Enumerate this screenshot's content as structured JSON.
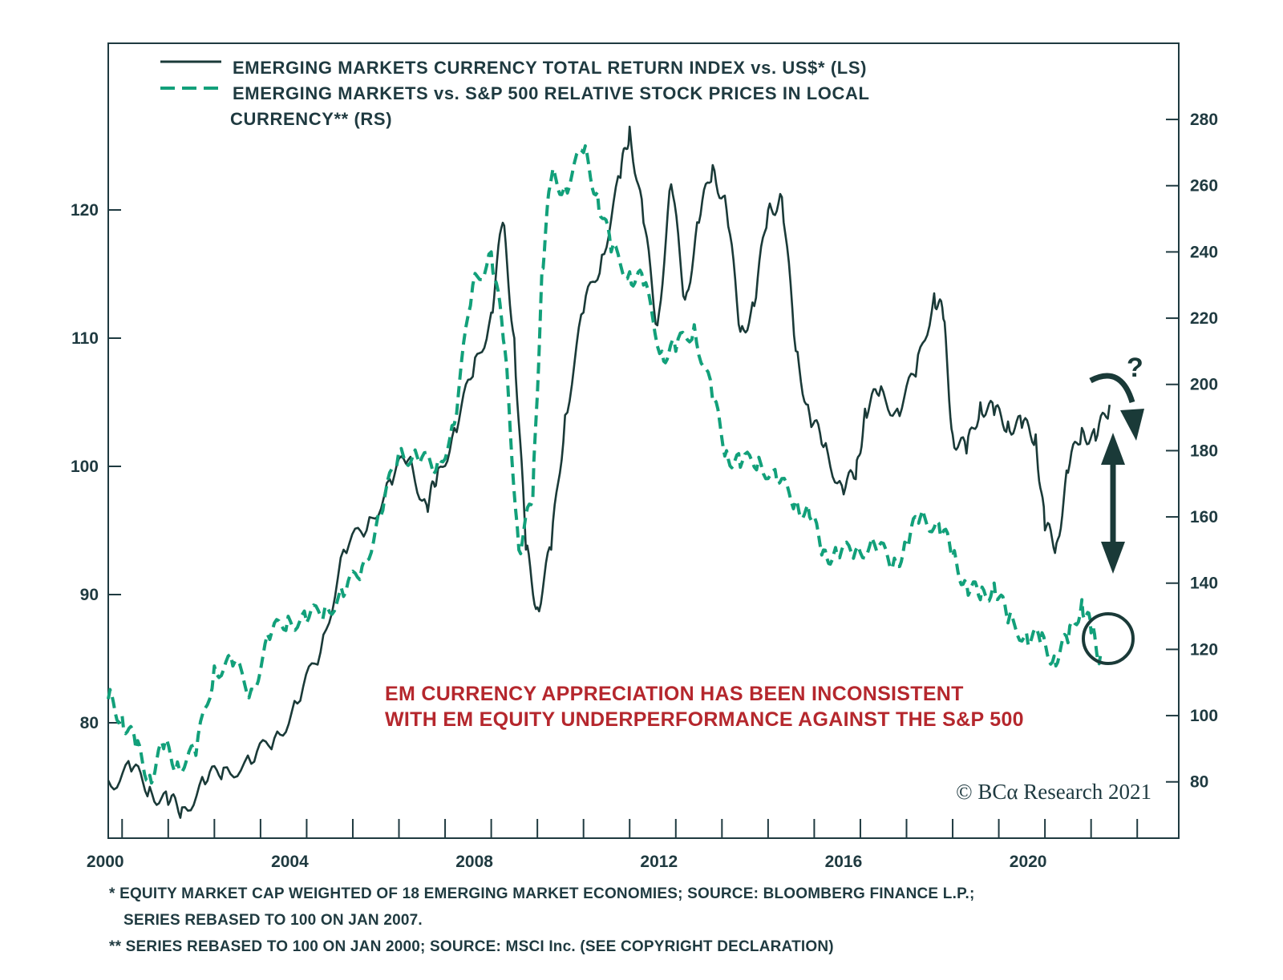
{
  "chart_data": {
    "type": "line",
    "legend": [
      {
        "label_line1": "EMERGING MARKETS CURRENCY TOTAL RETURN INDEX vs. US$* (LS)",
        "label_line2": "",
        "style": "solid",
        "color": "#1a3a38"
      },
      {
        "label_line1": "EMERGING MARKETS vs. S&P 500 RELATIVE STOCK PRICES IN LOCAL",
        "label_line2": "CURRENCY** (RS)",
        "style": "dashed",
        "color": "#12a07a"
      }
    ],
    "xlim": [
      1999.7,
      2022.9
    ],
    "x_tick_labels": [
      "2000",
      "2004",
      "2008",
      "2012",
      "2016",
      "2020"
    ],
    "left_axis": {
      "ylim": [
        71,
        133
      ],
      "ticks": [
        80,
        90,
        100,
        110,
        120
      ]
    },
    "right_axis": {
      "ylim": [
        63,
        303
      ],
      "ticks": [
        80,
        100,
        120,
        140,
        160,
        180,
        200,
        220,
        240,
        260,
        280
      ]
    },
    "series": [
      {
        "axis": "left",
        "x": [
          1999.7,
          2000.2,
          2000.6,
          2001.0,
          2001.3,
          2001.8,
          2002.2,
          2002.8,
          2003.3,
          2003.8,
          2004.3,
          2004.8,
          2005.3,
          2005.8,
          2006.2,
          2006.6,
          2006.8,
          2007.2,
          2007.6,
          2008.0,
          2008.25,
          2008.5,
          2008.75,
          2009.0,
          2009.3,
          2009.6,
          2010.0,
          2010.4,
          2010.8,
          2011.0,
          2011.3,
          2011.6,
          2011.9,
          2012.2,
          2012.5,
          2012.8,
          2013.1,
          2013.4,
          2013.7,
          2014.0,
          2014.3,
          2014.6,
          2014.9,
          2015.2,
          2015.6,
          2015.9,
          2016.1,
          2016.4,
          2016.8,
          2017.2,
          2017.6,
          2017.8,
          2018.0,
          2018.3,
          2018.6,
          2018.9,
          2019.2,
          2019.5,
          2019.8,
          2020.0,
          2020.25,
          2020.5,
          2020.8,
          2021.1,
          2021.4
        ],
        "y": [
          75.5,
          76.2,
          75.0,
          73.6,
          73.4,
          75.2,
          76.5,
          76.8,
          78.8,
          81.5,
          85.5,
          93.5,
          95.0,
          99.0,
          100.5,
          97.0,
          98.5,
          103.0,
          107.0,
          112.0,
          119.0,
          110.0,
          93.5,
          89.0,
          93.5,
          104.0,
          112.0,
          116.5,
          122.5,
          126.5,
          119.0,
          111.0,
          122.0,
          113.0,
          119.0,
          123.5,
          120.0,
          110.5,
          112.5,
          120.0,
          121.0,
          109.0,
          104.0,
          101.5,
          98.5,
          99.0,
          104.5,
          105.5,
          104.5,
          107.0,
          113.5,
          111.5,
          102.5,
          101.0,
          105.0,
          104.0,
          103.5,
          103.0,
          102.5,
          95.0,
          94.0,
          99.5,
          103.0,
          102.0,
          104.8
        ]
      },
      {
        "axis": "right",
        "x": [
          1999.7,
          2000.0,
          2000.3,
          2000.6,
          2000.9,
          2001.2,
          2001.6,
          2002.0,
          2002.4,
          2002.8,
          2003.2,
          2003.6,
          2004.0,
          2004.4,
          2004.8,
          2005.2,
          2005.6,
          2006.0,
          2006.4,
          2006.8,
          2007.2,
          2007.6,
          2008.0,
          2008.3,
          2008.6,
          2008.9,
          2009.1,
          2009.3,
          2009.6,
          2010.0,
          2010.3,
          2010.6,
          2011.0,
          2011.3,
          2011.7,
          2012.0,
          2012.4,
          2012.8,
          2013.1,
          2013.4,
          2013.8,
          2014.2,
          2014.6,
          2014.9,
          2015.2,
          2015.5,
          2015.9,
          2016.3,
          2016.7,
          2017.0,
          2017.3,
          2017.7,
          2018.0,
          2018.3,
          2018.6,
          2018.9,
          2019.2,
          2019.6,
          2019.9,
          2020.2,
          2020.5,
          2020.8,
          2021.0,
          2021.2
        ],
        "y": [
          105,
          100,
          90,
          82,
          90,
          86,
          88,
          115,
          115,
          108,
          123,
          130,
          128,
          133,
          136,
          145,
          160,
          180,
          178,
          174,
          188,
          230,
          240,
          210,
          150,
          165,
          235,
          262,
          260,
          270,
          258,
          240,
          234,
          230,
          210,
          210,
          218,
          195,
          180,
          175,
          178,
          170,
          165,
          160,
          150,
          148,
          150,
          152,
          145,
          152,
          160,
          158,
          148,
          140,
          135,
          140,
          128,
          125,
          122,
          118,
          122,
          135,
          125,
          118
        ]
      }
    ],
    "annotation_question": "?",
    "annotation": [
      "EM CURRENCY APPRECIATION HAS BEEN INCONSISTENT",
      "WITH EM EQUITY UNDERPERFORMANCE AGAINST THE S&P 500"
    ],
    "copyright": "© BCα Research 2021",
    "footnotes": [
      "*  EQUITY MARKET CAP WEIGHTED OF 18 EMERGING MARKET ECONOMIES; SOURCE: BLOOMBERG FINANCE L.P.;",
      "SERIES REBASED TO 100 ON JAN 2007.",
      "** SERIES REBASED TO 100 ON JAN 2000; SOURCE: MSCI Inc. (SEE COPYRIGHT DECLARATION)"
    ],
    "colors": {
      "solid": "#1a3a38",
      "dashed": "#12a07a",
      "annotation": "#b5272d",
      "axis": "#1f3a40"
    }
  }
}
